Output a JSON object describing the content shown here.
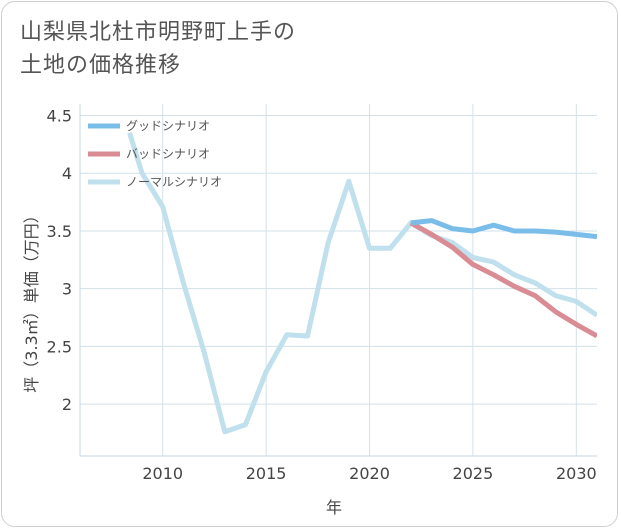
{
  "title_lines": [
    "山梨県北杜市明野町上手の",
    "土地の価格推移"
  ],
  "chart_data": {
    "type": "line",
    "xlabel": "年",
    "ylabel": "坪（3.3㎡）単価（万円）",
    "xlim": [
      2006,
      2031
    ],
    "ylim": [
      1.55,
      4.6
    ],
    "x_ticks": [
      2010,
      2015,
      2020,
      2025,
      2030
    ],
    "y_ticks": [
      2,
      2.5,
      3,
      3.5,
      4,
      4.5
    ],
    "y_tick_labels": [
      "2",
      "2.5",
      "3",
      "3.5",
      "4",
      "4.5"
    ],
    "grid": true,
    "legend_position": "top-left",
    "series": [
      {
        "name": "グッドシナリオ",
        "color": "#7bbde9",
        "x": [
          2022,
          2023,
          2024,
          2025,
          2026,
          2027,
          2028,
          2029,
          2030,
          2031
        ],
        "y": [
          3.57,
          3.59,
          3.52,
          3.5,
          3.55,
          3.5,
          3.5,
          3.49,
          3.47,
          3.45
        ]
      },
      {
        "name": "バッドシナリオ",
        "color": "#d98c93",
        "x": [
          2022,
          2023,
          2024,
          2025,
          2026,
          2027,
          2028,
          2029,
          2030,
          2031
        ],
        "y": [
          3.57,
          3.47,
          3.36,
          3.21,
          3.12,
          3.02,
          2.94,
          2.8,
          2.69,
          2.59
        ]
      },
      {
        "name": "ノーマルシナリオ",
        "color": "#bfe0ec",
        "x": [
          2008.4,
          2009,
          2010,
          2011,
          2012,
          2013,
          2014,
          2015,
          2016,
          2017,
          2018,
          2019,
          2020,
          2021,
          2022,
          2023,
          2024,
          2025,
          2026,
          2027,
          2028,
          2029,
          2030,
          2031
        ],
        "y": [
          4.35,
          4.0,
          3.71,
          3.05,
          2.45,
          1.76,
          1.82,
          2.28,
          2.6,
          2.59,
          3.4,
          3.93,
          3.35,
          3.35,
          3.57,
          3.46,
          3.4,
          3.27,
          3.23,
          3.12,
          3.05,
          2.94,
          2.89,
          2.77
        ]
      }
    ]
  }
}
